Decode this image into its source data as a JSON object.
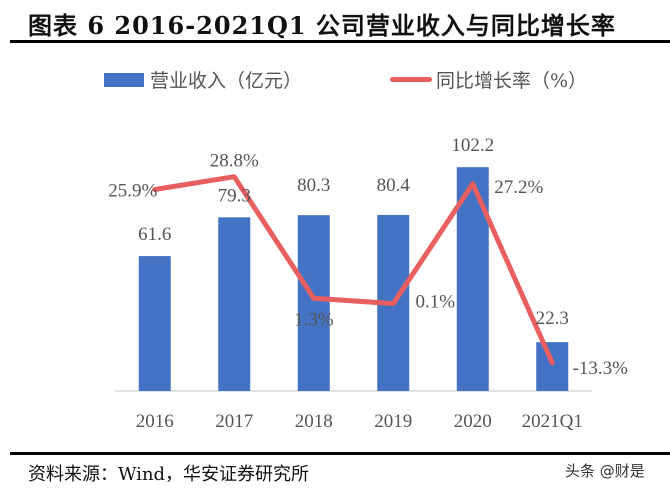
{
  "title": "图表 6 2016-2021Q1 公司营业收入与同比增长率",
  "source": "资料来源：Wind，华安证券研究所",
  "watermark": "头条 @财是",
  "chart_data": {
    "type": "bar+line",
    "title": "",
    "categories": [
      "2016",
      "2017",
      "2018",
      "2019",
      "2020",
      "2021Q1"
    ],
    "series": [
      {
        "name": "营业收入（亿元）",
        "type": "bar",
        "color": "#4472C4",
        "values": [
          61.6,
          79.3,
          80.3,
          80.4,
          102.2,
          22.3
        ],
        "labels": [
          "61.6",
          "79.3",
          "80.3",
          "80.4",
          "102.2",
          "22.3"
        ]
      },
      {
        "name": "同比增长率（%）",
        "type": "line",
        "color": "#E95F5F",
        "values": [
          25.9,
          28.8,
          1.3,
          0.1,
          27.2,
          -13.3
        ],
        "labels": [
          "25.9%",
          "28.8%",
          "1.3%",
          "0.1%",
          "27.2%",
          "-13.3%"
        ]
      }
    ],
    "legend": "top",
    "grid": false
  }
}
